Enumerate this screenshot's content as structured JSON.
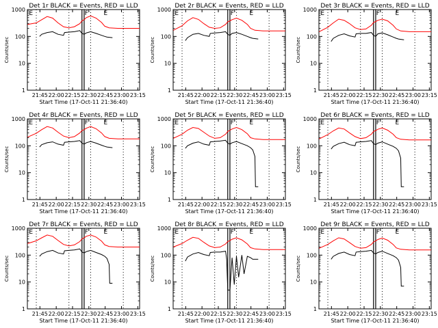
{
  "figure": {
    "ylabel": "Counts/sec",
    "xlabel": "Start Time (17-Oct-11 21:36:40)",
    "x_tick_labels": [
      "21:45",
      "22:00",
      "22:15",
      "22:30",
      "22:45",
      "23:00",
      "23:15"
    ],
    "y_tick_labels": [
      "1",
      "10",
      "100",
      "1000"
    ],
    "marker_labels": [
      "E",
      "F",
      "E"
    ],
    "colors": {
      "events": "#000000",
      "lld": "#ff0000",
      "axes": "#000000",
      "background": "#ffffff"
    }
  },
  "chart_data": [
    {
      "type": "line",
      "title": "Det 1r BLACK = Events, RED = LLD",
      "xlabel": "Start Time (17-Oct-11 21:36:40)",
      "ylabel": "Counts/sec",
      "xlim_minutes": [
        -3.2,
        100
      ],
      "ylim": [
        1,
        1000
      ],
      "yscale": "log",
      "vlines_minutes": [
        5,
        35,
        55,
        85
      ],
      "gap_minutes": [
        47,
        49
      ],
      "series": [
        {
          "name": "LLD",
          "color": "#ff0000",
          "x": [
            -3,
            5,
            10,
            15,
            20,
            25,
            30,
            35,
            40,
            45,
            47,
            49,
            51,
            55,
            60,
            65,
            68,
            72,
            80,
            85,
            90,
            95,
            100
          ],
          "y": [
            280,
            320,
            420,
            550,
            480,
            320,
            230,
            210,
            230,
            300,
            380,
            420,
            500,
            580,
            480,
            330,
            240,
            210,
            200,
            200,
            200,
            200,
            200
          ]
        },
        {
          "name": "Events",
          "color": "#000000",
          "x": [
            8,
            10,
            15,
            20,
            25,
            30,
            31,
            35,
            40,
            45,
            47,
            49,
            51,
            55,
            60,
            65,
            68,
            70,
            75
          ],
          "y": [
            100,
            120,
            140,
            150,
            120,
            110,
            140,
            145,
            150,
            165,
            130,
            120,
            135,
            150,
            130,
            110,
            100,
            95,
            90
          ]
        }
      ]
    },
    {
      "type": "line",
      "title": "Det 2r BLACK = Events, RED = LLD",
      "xlabel": "Start Time (17-Oct-11 21:36:40)",
      "ylabel": "Counts/sec",
      "xlim_minutes": [
        -3.2,
        100
      ],
      "ylim": [
        1,
        1000
      ],
      "yscale": "log",
      "vlines_minutes": [
        5,
        35,
        55,
        85
      ],
      "gap_minutes": [
        47,
        49
      ],
      "series": [
        {
          "name": "LLD",
          "color": "#ff0000",
          "x": [
            -3,
            5,
            10,
            15,
            20,
            25,
            30,
            35,
            40,
            45,
            47,
            49,
            51,
            55,
            60,
            65,
            68,
            72,
            80,
            85,
            90,
            95,
            100
          ],
          "y": [
            170,
            250,
            380,
            500,
            430,
            300,
            220,
            200,
            210,
            280,
            350,
            380,
            420,
            480,
            400,
            280,
            200,
            170,
            160,
            160,
            160,
            160,
            160
          ]
        },
        {
          "name": "Events",
          "color": "#000000",
          "x": [
            8,
            10,
            15,
            20,
            25,
            30,
            31,
            35,
            40,
            45,
            47,
            49,
            51,
            55,
            60,
            65,
            68,
            70,
            75
          ],
          "y": [
            70,
            90,
            120,
            130,
            110,
            100,
            130,
            135,
            140,
            150,
            120,
            110,
            130,
            140,
            120,
            100,
            90,
            85,
            80
          ]
        }
      ]
    },
    {
      "type": "line",
      "title": "Det 3r BLACK = Events, RED = LLD",
      "xlabel": "Start Time (17-Oct-11 21:36:40)",
      "ylabel": "Counts/sec",
      "xlim_minutes": [
        -3.2,
        100
      ],
      "ylim": [
        1,
        1000
      ],
      "yscale": "log",
      "vlines_minutes": [
        5,
        35,
        55,
        85
      ],
      "gap_minutes": [
        47,
        49
      ],
      "series": [
        {
          "name": "LLD",
          "color": "#ff0000",
          "x": [
            -3,
            5,
            10,
            15,
            20,
            25,
            30,
            35,
            40,
            45,
            47,
            49,
            51,
            55,
            60,
            65,
            68,
            72,
            80,
            85,
            90,
            95,
            100
          ],
          "y": [
            150,
            220,
            320,
            440,
            400,
            300,
            210,
            180,
            190,
            260,
            330,
            360,
            400,
            440,
            380,
            260,
            190,
            160,
            150,
            150,
            150,
            150,
            150
          ]
        },
        {
          "name": "Events",
          "color": "#000000",
          "x": [
            8,
            10,
            15,
            20,
            25,
            30,
            31,
            35,
            40,
            45,
            47,
            49,
            51,
            55,
            60,
            65,
            68,
            70,
            75
          ],
          "y": [
            65,
            85,
            110,
            125,
            105,
            95,
            125,
            130,
            130,
            140,
            110,
            100,
            125,
            135,
            115,
            95,
            85,
            80,
            75
          ]
        }
      ]
    },
    {
      "type": "line",
      "title": "Det 4r BLACK = Events, RED = LLD",
      "xlabel": "Start Time (17-Oct-11 21:36:40)",
      "ylabel": "Counts/sec",
      "xlim_minutes": [
        -3.2,
        100
      ],
      "ylim": [
        1,
        1000
      ],
      "yscale": "log",
      "vlines_minutes": [
        5,
        35,
        55,
        85
      ],
      "gap_minutes": [
        47,
        49
      ],
      "series": [
        {
          "name": "LLD",
          "color": "#ff0000",
          "x": [
            -3,
            5,
            10,
            15,
            20,
            25,
            30,
            35,
            40,
            45,
            47,
            49,
            51,
            55,
            60,
            65,
            68,
            72,
            80,
            85,
            90,
            95,
            100
          ],
          "y": [
            210,
            290,
            400,
            520,
            460,
            320,
            230,
            200,
            220,
            300,
            370,
            400,
            450,
            520,
            430,
            300,
            220,
            190,
            180,
            180,
            180,
            180,
            180
          ]
        },
        {
          "name": "Events",
          "color": "#000000",
          "x": [
            8,
            10,
            15,
            20,
            25,
            30,
            31,
            35,
            40,
            45,
            47,
            49,
            51,
            55,
            60,
            65,
            68,
            70,
            75
          ],
          "y": [
            90,
            110,
            130,
            140,
            115,
            105,
            135,
            140,
            145,
            155,
            125,
            115,
            130,
            145,
            125,
            105,
            95,
            90,
            85
          ]
        }
      ]
    },
    {
      "type": "line",
      "title": "Det 5r BLACK = Events, RED = LLD",
      "xlabel": "Start Time (17-Oct-11 21:36:40)",
      "ylabel": "Counts/sec",
      "xlim_minutes": [
        -3.2,
        100
      ],
      "ylim": [
        1,
        1000
      ],
      "yscale": "log",
      "vlines_minutes": [
        5,
        35,
        55,
        85
      ],
      "gap_minutes": [
        47,
        49
      ],
      "series": [
        {
          "name": "LLD",
          "color": "#ff0000",
          "x": [
            -3,
            5,
            10,
            15,
            20,
            25,
            30,
            35,
            40,
            45,
            47,
            49,
            51,
            55,
            60,
            65,
            68,
            72,
            80,
            85,
            90,
            95,
            100
          ],
          "y": [
            190,
            270,
            380,
            480,
            440,
            320,
            230,
            190,
            200,
            270,
            340,
            380,
            420,
            480,
            400,
            280,
            200,
            180,
            170,
            170,
            170,
            170,
            170
          ]
        },
        {
          "name": "Events",
          "color": "#000000",
          "x": [
            8,
            10,
            15,
            20,
            25,
            30,
            31,
            35,
            40,
            45,
            47,
            49,
            51,
            55,
            60,
            65,
            68,
            70,
            72,
            72.5,
            75
          ],
          "y": [
            80,
            100,
            125,
            140,
            115,
            105,
            140,
            145,
            150,
            160,
            125,
            115,
            130,
            145,
            120,
            100,
            85,
            70,
            40,
            3,
            3
          ]
        }
      ]
    },
    {
      "type": "line",
      "title": "Det 6r BLACK = Events, RED = LLD",
      "xlabel": "Start Time (17-Oct-11 21:36:40)",
      "ylabel": "Counts/sec",
      "xlim_minutes": [
        -3.2,
        100
      ],
      "ylim": [
        1,
        1000
      ],
      "yscale": "log",
      "vlines_minutes": [
        5,
        35,
        55,
        85
      ],
      "gap_minutes": [
        47,
        49
      ],
      "series": [
        {
          "name": "LLD",
          "color": "#ff0000",
          "x": [
            -3,
            5,
            10,
            15,
            20,
            25,
            30,
            35,
            40,
            45,
            47,
            49,
            51,
            55,
            60,
            65,
            68,
            72,
            80,
            85,
            90,
            95,
            100
          ],
          "y": [
            180,
            260,
            360,
            460,
            420,
            300,
            220,
            185,
            200,
            270,
            340,
            370,
            410,
            460,
            380,
            270,
            200,
            175,
            165,
            165,
            165,
            165,
            165
          ]
        },
        {
          "name": "Events",
          "color": "#000000",
          "x": [
            8,
            10,
            15,
            20,
            25,
            30,
            31,
            35,
            40,
            45,
            47,
            49,
            51,
            55,
            60,
            65,
            68,
            70,
            72,
            72.5,
            75
          ],
          "y": [
            75,
            95,
            120,
            135,
            110,
            100,
            135,
            140,
            145,
            155,
            120,
            110,
            125,
            140,
            115,
            95,
            80,
            65,
            35,
            3,
            3
          ]
        }
      ]
    },
    {
      "type": "line",
      "title": "Det 7r BLACK = Events, RED = LLD",
      "xlabel": "Start Time (17-Oct-11 21:36:40)",
      "ylabel": "Counts/sec",
      "xlim_minutes": [
        -3.2,
        100
      ],
      "ylim": [
        1,
        1000
      ],
      "yscale": "log",
      "vlines_minutes": [
        5,
        35,
        55,
        85
      ],
      "gap_minutes": [
        47,
        49
      ],
      "series": [
        {
          "name": "LLD",
          "color": "#ff0000",
          "x": [
            -3,
            5,
            10,
            15,
            20,
            25,
            30,
            35,
            40,
            45,
            47,
            49,
            51,
            55,
            60,
            65,
            68,
            72,
            80,
            85,
            90,
            95,
            100
          ],
          "y": [
            270,
            340,
            440,
            560,
            500,
            350,
            250,
            220,
            240,
            320,
            400,
            440,
            500,
            560,
            470,
            330,
            240,
            210,
            200,
            200,
            200,
            200,
            200
          ]
        },
        {
          "name": "Events",
          "color": "#000000",
          "x": [
            8,
            10,
            15,
            20,
            25,
            30,
            31,
            35,
            40,
            45,
            47,
            49,
            51,
            55,
            60,
            65,
            68,
            70,
            72,
            72.5,
            75
          ],
          "y": [
            90,
            110,
            135,
            150,
            120,
            110,
            145,
            150,
            155,
            170,
            130,
            120,
            135,
            150,
            125,
            105,
            90,
            75,
            45,
            9,
            9
          ]
        }
      ]
    },
    {
      "type": "line",
      "title": "Det 8r BLACK = Events, RED = LLD",
      "xlabel": "Start Time (17-Oct-11 21:36:40)",
      "ylabel": "Counts/sec",
      "xlim_minutes": [
        -3.2,
        100
      ],
      "ylim": [
        1,
        1000
      ],
      "yscale": "log",
      "vlines_minutes": [
        5,
        35,
        55,
        85
      ],
      "gap_minutes": [
        47,
        49
      ],
      "series": [
        {
          "name": "LLD",
          "color": "#ff0000",
          "x": [
            -3,
            5,
            10,
            15,
            20,
            25,
            30,
            35,
            40,
            45,
            47,
            49,
            51,
            55,
            60,
            65,
            68,
            72,
            80,
            85,
            90,
            95,
            100
          ],
          "y": [
            200,
            270,
            360,
            460,
            420,
            300,
            220,
            190,
            200,
            260,
            320,
            350,
            390,
            440,
            370,
            260,
            190,
            170,
            160,
            160,
            160,
            160,
            160
          ]
        },
        {
          "name": "Events",
          "color": "#000000",
          "x": [
            8,
            10,
            15,
            20,
            25,
            30,
            31,
            35,
            40,
            45,
            46,
            47,
            49,
            51,
            53,
            55,
            57,
            60,
            62,
            65,
            68,
            70,
            75
          ],
          "y": [
            60,
            85,
            110,
            125,
            105,
            95,
            125,
            130,
            130,
            140,
            70,
            5,
            5,
            80,
            8,
            90,
            15,
            100,
            20,
            90,
            80,
            70,
            70
          ]
        }
      ]
    },
    {
      "type": "line",
      "title": "Det 9r BLACK = Events, RED = LLD",
      "xlabel": "Start Time (17-Oct-11 21:36:40)",
      "ylabel": "Counts/sec",
      "xlim_minutes": [
        -3.2,
        100
      ],
      "ylim": [
        1,
        1000
      ],
      "yscale": "log",
      "vlines_minutes": [
        5,
        35,
        55,
        85
      ],
      "gap_minutes": [
        47,
        49
      ],
      "series": [
        {
          "name": "LLD",
          "color": "#ff0000",
          "x": [
            -3,
            5,
            10,
            15,
            20,
            25,
            30,
            35,
            40,
            45,
            47,
            49,
            51,
            55,
            60,
            65,
            68,
            72,
            80,
            85,
            90,
            95,
            100
          ],
          "y": [
            180,
            250,
            340,
            440,
            400,
            290,
            210,
            180,
            190,
            250,
            310,
            340,
            380,
            430,
            360,
            250,
            185,
            165,
            155,
            155,
            155,
            155,
            155
          ]
        },
        {
          "name": "Events",
          "color": "#000000",
          "x": [
            8,
            10,
            15,
            20,
            25,
            30,
            31,
            35,
            40,
            45,
            47,
            49,
            51,
            55,
            60,
            65,
            68,
            70,
            72,
            72.5,
            75
          ],
          "y": [
            70,
            90,
            115,
            130,
            105,
            95,
            130,
            135,
            140,
            150,
            120,
            110,
            125,
            140,
            115,
            95,
            80,
            65,
            35,
            7,
            7
          ]
        }
      ]
    }
  ]
}
